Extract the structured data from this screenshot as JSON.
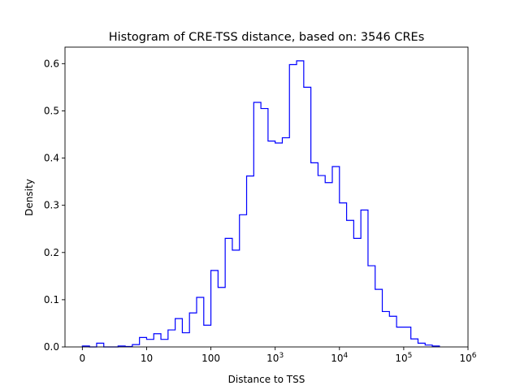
{
  "chart_data": {
    "type": "histogram",
    "title": "Histogram of CRE-TSS distance, based on: 3546 CREs",
    "xlabel": "Distance to TSS",
    "ylabel": "Density",
    "x_scale": "log10 (with 0 at origin)",
    "xlim_log10": [
      -0.27,
      6
    ],
    "ylim": [
      0,
      0.635
    ],
    "x_ticks": [
      {
        "pos": 0,
        "label": "0",
        "sup": ""
      },
      {
        "pos": 1,
        "label": "10",
        "sup": ""
      },
      {
        "pos": 2,
        "label": "100",
        "sup": ""
      },
      {
        "pos": 3,
        "label": "10",
        "sup": "3"
      },
      {
        "pos": 4,
        "label": "10",
        "sup": "4"
      },
      {
        "pos": 5,
        "label": "10",
        "sup": "5"
      },
      {
        "pos": 6,
        "label": "10",
        "sup": "6"
      }
    ],
    "y_ticks": [
      "0.0",
      "0.1",
      "0.2",
      "0.3",
      "0.4",
      "0.5",
      "0.6"
    ],
    "bin_start_log10": 0,
    "bins_per_decade": 9,
    "values": [
      0.002,
      0,
      0.008,
      0,
      0,
      0.002,
      0.001,
      0.005,
      0.02,
      0.016,
      0.028,
      0.016,
      0.036,
      0.06,
      0.03,
      0.072,
      0.105,
      0.046,
      0.162,
      0.126,
      0.23,
      0.205,
      0.28,
      0.362,
      0.518,
      0.505,
      0.436,
      0.432,
      0.443,
      0.598,
      0.606,
      0.55,
      0.39,
      0.363,
      0.348,
      0.382,
      0.305,
      0.268,
      0.23,
      0.29,
      0.172,
      0.122,
      0.075,
      0.065,
      0.042,
      0.042,
      0.017,
      0.008,
      0.004,
      0.002
    ],
    "histtype": "step",
    "color": "#0000ff",
    "grid": false,
    "legend": "none"
  }
}
